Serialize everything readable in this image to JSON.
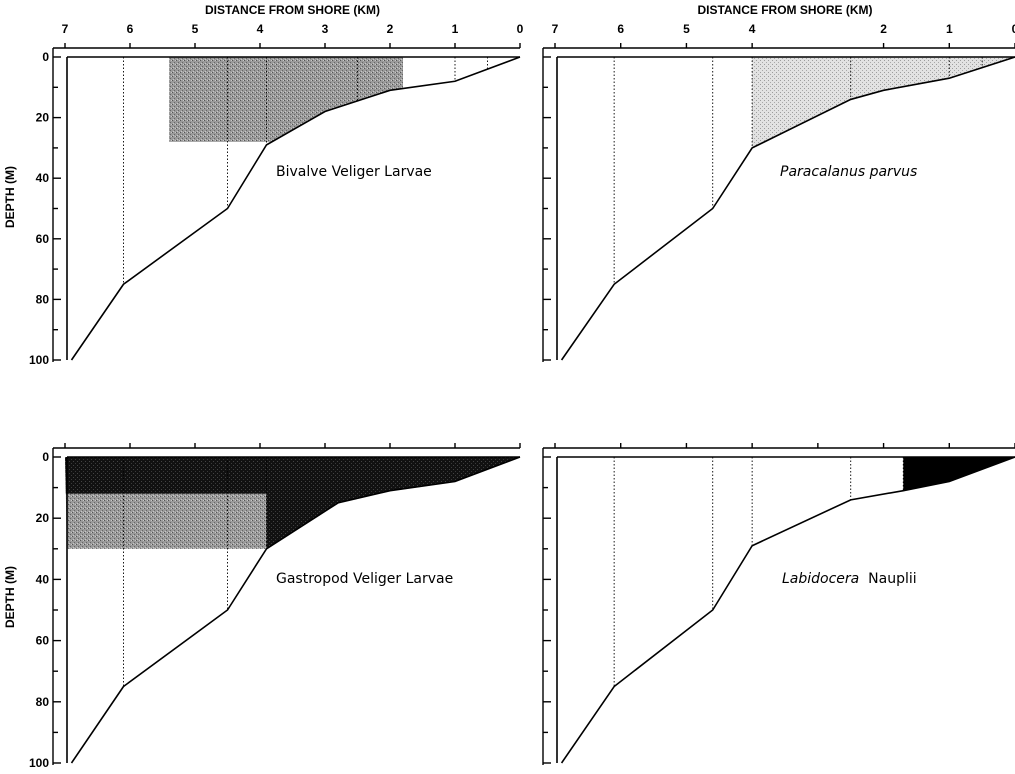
{
  "chart_data": [
    {
      "type": "area",
      "title": "Bivalve Veliger Larvae",
      "title_italic": false,
      "panel": "top-left",
      "x_title": "DISTANCE FROM SHORE (KM)",
      "y_title": "DEPTH (M)",
      "x_ticks": [
        7,
        6,
        5,
        4,
        3,
        2,
        1,
        0
      ],
      "x_tick_labels": [
        "7",
        "6",
        "5",
        "4",
        "3",
        "2",
        "1",
        "0"
      ],
      "y_ticks": [
        0,
        20,
        40,
        60,
        80,
        100
      ],
      "y_tick_labels": [
        "0",
        "20",
        "40",
        "60",
        "80",
        "100"
      ],
      "xlim": [
        7,
        0
      ],
      "ylim": [
        0,
        100
      ],
      "bottom_profile": {
        "distance_km": [
          0,
          1,
          2,
          3,
          3.9,
          4.5,
          6.1,
          6.9
        ],
        "depth_m": [
          0,
          8,
          11,
          18,
          29,
          50,
          75,
          100
        ]
      },
      "stations_km": [
        6.1,
        4.5,
        3.9,
        2.5,
        1.0,
        0.5
      ],
      "regions": [
        {
          "x": [
            5.4,
            1.8
          ],
          "depth": [
            0,
            28
          ],
          "shade": "medium",
          "clip_to_bottom": true
        }
      ]
    },
    {
      "type": "area",
      "title": "Paracalanus parvus",
      "title_italic": true,
      "panel": "top-right",
      "x_title": "DISTANCE FROM SHORE (KM)",
      "y_title": "",
      "x_ticks": [
        7,
        6,
        5,
        4,
        2,
        1,
        0
      ],
      "x_tick_labels": [
        "7",
        "6",
        "5",
        "4",
        "2",
        "1",
        "0"
      ],
      "y_ticks": [
        0,
        20,
        40,
        60,
        80,
        100
      ],
      "y_tick_labels": [],
      "xlim": [
        7,
        0
      ],
      "ylim": [
        0,
        100
      ],
      "bottom_profile": {
        "distance_km": [
          0,
          1,
          2,
          2.5,
          4.0,
          4.6,
          6.1,
          6.9
        ],
        "depth_m": [
          0,
          7,
          11,
          14,
          30,
          50,
          75,
          100
        ]
      },
      "stations_km": [
        6.1,
        4.6,
        4.0,
        2.5,
        1.0,
        0.5
      ],
      "regions": [
        {
          "x": [
            4.0,
            0
          ],
          "depth": [
            0,
            30
          ],
          "shade": "light",
          "clip_to_bottom": true
        }
      ]
    },
    {
      "type": "area",
      "title": "Gastropod Veliger Larvae",
      "title_italic": false,
      "panel": "bottom-left",
      "x_title": "",
      "y_title": "DEPTH (M)",
      "x_ticks": [
        7,
        6,
        5,
        4,
        3,
        2,
        1,
        0
      ],
      "x_tick_labels": [],
      "y_ticks": [
        0,
        20,
        40,
        60,
        80,
        100
      ],
      "y_tick_labels": [
        "0",
        "20",
        "40",
        "60",
        "80",
        "100"
      ],
      "xlim": [
        7,
        0
      ],
      "ylim": [
        0,
        100
      ],
      "bottom_profile": {
        "distance_km": [
          0,
          1,
          2,
          2.8,
          3.9,
          4.5,
          6.1,
          6.9
        ],
        "depth_m": [
          0,
          8,
          11,
          15,
          30,
          50,
          75,
          100
        ]
      },
      "stations_km": [
        6.1,
        4.5,
        3.9
      ],
      "regions": [
        {
          "x": [
            7,
            3.9
          ],
          "depth": [
            0,
            30
          ],
          "shade": "medium",
          "clip_to_bottom": true
        },
        {
          "x": [
            7,
            0
          ],
          "depth": [
            0,
            12
          ],
          "shade": "dark",
          "clip_to_bottom": true
        },
        {
          "x": [
            3.9,
            0
          ],
          "depth": [
            0,
            30
          ],
          "shade": "dark",
          "clip_to_bottom": true
        }
      ]
    },
    {
      "type": "area",
      "title": "Labidocera Nauplii",
      "title_parts": [
        {
          "text": "Labidocera",
          "italic": true
        },
        {
          "text": "Nauplii",
          "italic": false
        }
      ],
      "panel": "bottom-right",
      "x_title": "",
      "y_title": "",
      "x_ticks": [
        7,
        6,
        5,
        4,
        3,
        2,
        1,
        0
      ],
      "x_tick_labels": [],
      "y_ticks": [
        0,
        20,
        40,
        60,
        80,
        100
      ],
      "y_tick_labels": [],
      "xlim": [
        7,
        0
      ],
      "ylim": [
        0,
        100
      ],
      "bottom_profile": {
        "distance_km": [
          0,
          1,
          1.7,
          2.5,
          4.0,
          4.6,
          6.1,
          6.9
        ],
        "depth_m": [
          0,
          8,
          11,
          14,
          29,
          50,
          75,
          100
        ]
      },
      "stations_km": [
        6.1,
        4.6,
        4.0,
        2.5,
        1.7
      ],
      "regions": [
        {
          "x": [
            1.7,
            0
          ],
          "depth": [
            0,
            11
          ],
          "shade": "black",
          "clip_to_bottom": true
        }
      ]
    }
  ],
  "colors": {
    "light": "#d9d9d9",
    "medium": "#8a8a8a",
    "dark": "#1a1a1a",
    "black": "#000000"
  }
}
